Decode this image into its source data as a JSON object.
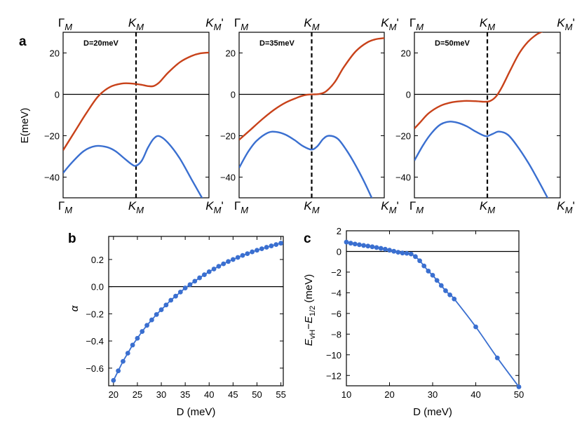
{
  "panel_letters": {
    "a": "a",
    "b": "b",
    "c": "c"
  },
  "colors": {
    "upper_band": "#c8421a",
    "lower_band": "#3a6fd0",
    "markers": "#3a6fd0",
    "zero_line": "#000000"
  },
  "chart_data": [
    {
      "id": "a1",
      "type": "line",
      "panel": "a",
      "label": "D=20meV",
      "ylabel": "E(meV)",
      "x_ticks": [
        "Γ_M",
        "K_M",
        "K_M'"
      ],
      "ylim": [
        -50,
        30
      ],
      "yticks": [
        20,
        0,
        -20,
        -40
      ],
      "kline_x": 0.5,
      "series": [
        {
          "x": [
            0,
            0.08,
            0.16,
            0.24,
            0.32,
            0.4,
            0.46,
            0.5,
            0.54,
            0.58,
            0.62,
            0.66,
            0.72,
            0.8,
            0.88,
            0.94,
            1.0
          ],
          "y": [
            -27,
            -18,
            -9,
            -1,
            3.5,
            5.2,
            5.3,
            5.0,
            4.6,
            4.0,
            4.0,
            5.8,
            10.5,
            15.5,
            18.5,
            19.8,
            20.2
          ]
        },
        {
          "x": [
            0,
            0.06,
            0.14,
            0.22,
            0.3,
            0.36,
            0.42,
            0.47,
            0.5,
            0.54,
            0.58,
            0.62,
            0.66,
            0.72,
            0.8,
            0.88,
            0.96
          ],
          "y": [
            -38,
            -33,
            -27.5,
            -25,
            -25.5,
            -27.5,
            -31,
            -33.8,
            -34.5,
            -32,
            -26,
            -21.5,
            -20.2,
            -23.5,
            -31,
            -41,
            -51
          ]
        }
      ]
    },
    {
      "id": "a2",
      "type": "line",
      "panel": "a",
      "label": "D=35meV",
      "x_ticks": [
        "Γ_M",
        "K_M",
        "K_M'"
      ],
      "ylim": [
        -50,
        30
      ],
      "yticks": [
        20,
        0,
        -20,
        -40
      ],
      "kline_x": 0.5,
      "series": [
        {
          "x": [
            0,
            0.08,
            0.16,
            0.24,
            0.32,
            0.4,
            0.44,
            0.48,
            0.52,
            0.56,
            0.6,
            0.66,
            0.72,
            0.8,
            0.88,
            0.94,
            1.0
          ],
          "y": [
            -22,
            -17,
            -12,
            -7.5,
            -4,
            -1.6,
            -0.6,
            -0.1,
            0.0,
            0.3,
            1.5,
            6,
            13,
            20.5,
            25,
            26.6,
            27.2
          ]
        },
        {
          "x": [
            0,
            0.06,
            0.12,
            0.2,
            0.26,
            0.32,
            0.38,
            0.44,
            0.5,
            0.54,
            0.58,
            0.62,
            0.68,
            0.74,
            0.8,
            0.86,
            0.92
          ],
          "y": [
            -35.5,
            -28,
            -22.5,
            -18.5,
            -18.2,
            -19.5,
            -22,
            -25,
            -26.7,
            -25,
            -21.5,
            -20,
            -21.5,
            -27,
            -34,
            -42,
            -51
          ]
        }
      ]
    },
    {
      "id": "a3",
      "type": "line",
      "panel": "a",
      "label": "D=50meV",
      "x_ticks": [
        "Γ_M",
        "K_M",
        "K_M'"
      ],
      "ylim": [
        -50,
        30
      ],
      "yticks": [
        20,
        0,
        -20,
        -40
      ],
      "kline_x": 0.5,
      "series": [
        {
          "x": [
            0,
            0.04,
            0.1,
            0.18,
            0.26,
            0.34,
            0.42,
            0.48,
            0.52,
            0.56,
            0.6,
            0.66,
            0.72,
            0.78,
            0.84,
            0.9
          ],
          "y": [
            -16.5,
            -13.5,
            -9,
            -5.5,
            -3.8,
            -3.2,
            -3.3,
            -3.6,
            -3.2,
            -1,
            3.5,
            12,
            20,
            25.5,
            29,
            31
          ]
        },
        {
          "x": [
            0,
            0.06,
            0.12,
            0.18,
            0.24,
            0.3,
            0.36,
            0.42,
            0.47,
            0.5,
            0.54,
            0.58,
            0.64,
            0.7,
            0.78,
            0.86,
            0.92
          ],
          "y": [
            -32,
            -24.5,
            -18.5,
            -14.5,
            -13.2,
            -13.8,
            -15.5,
            -18,
            -19.8,
            -20.2,
            -19,
            -18,
            -19.5,
            -24.5,
            -33,
            -43,
            -51
          ]
        }
      ]
    },
    {
      "id": "b",
      "type": "scatter",
      "panel": "b",
      "xlabel": "D (meV)",
      "ylabel": "α",
      "xlim": [
        19,
        55.5
      ],
      "ylim": [
        -0.73,
        0.37
      ],
      "xticks": [
        20,
        25,
        30,
        35,
        40,
        45,
        50,
        55
      ],
      "yticks": [
        0.2,
        0.0,
        -0.2,
        -0.4,
        -0.6
      ],
      "ytick_labels": [
        "0.2",
        "0.0",
        "−0.2",
        "−0.4",
        "−0.6"
      ],
      "x": [
        20,
        21,
        22,
        23,
        24,
        25,
        26,
        27,
        28,
        29,
        30,
        31,
        32,
        33,
        34,
        35,
        36,
        37,
        38,
        39,
        40,
        41,
        42,
        43,
        44,
        45,
        46,
        47,
        48,
        49,
        50,
        51,
        52,
        53,
        54,
        55
      ],
      "y": [
        -0.69,
        -0.62,
        -0.55,
        -0.49,
        -0.43,
        -0.38,
        -0.33,
        -0.285,
        -0.245,
        -0.205,
        -0.17,
        -0.135,
        -0.1,
        -0.07,
        -0.04,
        -0.01,
        0.015,
        0.04,
        0.065,
        0.088,
        0.11,
        0.13,
        0.15,
        0.168,
        0.185,
        0.2,
        0.215,
        0.23,
        0.243,
        0.256,
        0.268,
        0.279,
        0.29,
        0.3,
        0.31,
        0.32
      ]
    },
    {
      "id": "c",
      "type": "scatter",
      "panel": "c",
      "xlabel": "D (meV)",
      "ylabel": "E_vH − E_1/2 (meV)",
      "xlim": [
        10,
        50
      ],
      "ylim": [
        -13,
        2
      ],
      "xticks": [
        10,
        20,
        30,
        40,
        50
      ],
      "yticks": [
        2,
        0,
        -2,
        -4,
        -6,
        -8,
        -10,
        -12
      ],
      "ytick_labels": [
        "2",
        "0",
        "−2",
        "−4",
        "−6",
        "−8",
        "−10",
        "−12"
      ],
      "x": [
        10,
        11,
        12,
        13,
        14,
        15,
        16,
        17,
        18,
        19,
        20,
        21,
        22,
        23,
        24,
        25,
        26,
        27,
        28,
        29,
        30,
        31,
        32,
        33,
        34,
        35,
        40,
        45,
        50
      ],
      "y": [
        0.9,
        0.8,
        0.72,
        0.65,
        0.58,
        0.52,
        0.45,
        0.38,
        0.3,
        0.22,
        0.12,
        0.02,
        -0.08,
        -0.15,
        -0.18,
        -0.25,
        -0.5,
        -0.9,
        -1.4,
        -1.9,
        -2.3,
        -2.8,
        -3.3,
        -3.8,
        -4.2,
        -4.6,
        -7.3,
        -10.3,
        -13.1
      ]
    }
  ]
}
